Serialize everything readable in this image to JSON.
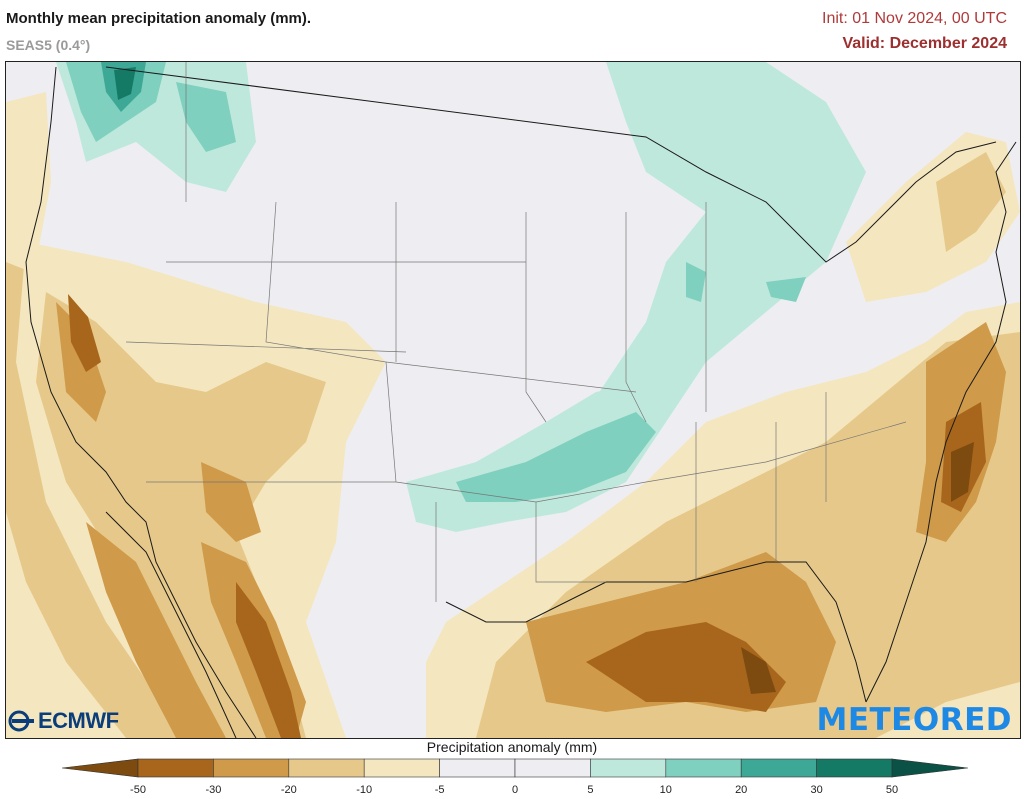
{
  "header": {
    "title": "Monthly mean precipitation anomaly (mm).",
    "subtitle": "SEAS5 (0.4°)",
    "init": "Init: 01 Nov 2024, 00 UTC",
    "valid": "Valid: December 2024"
  },
  "logos": {
    "left": "ECMWF",
    "right": "METEORED"
  },
  "colorbar": {
    "label": "Precipitation anomaly (mm)",
    "ticks": [
      "-50",
      "-30",
      "-20",
      "-10",
      "-5",
      "0",
      "5",
      "10",
      "20",
      "30",
      "50"
    ],
    "colors": [
      "#7d4a10",
      "#a8661c",
      "#cf9a4a",
      "#e6c98a",
      "#f4e6bf",
      "#eeeef2",
      "#eeeef2",
      "#bfe8dc",
      "#7fd0bf",
      "#3ea896",
      "#147a66",
      "#0b5145"
    ]
  },
  "map_colors": {
    "background": "#eeeef2",
    "dry_light": "#f4e6bf",
    "dry_mid": "#e6c98a",
    "dry_strong": "#cf9a4a",
    "dry_heavy": "#a8661c",
    "dry_extreme": "#7d4a10",
    "wet_light": "#bfe8dc",
    "wet_mid": "#7fd0bf",
    "wet_strong": "#3ea896",
    "wet_heavy": "#147a66"
  }
}
